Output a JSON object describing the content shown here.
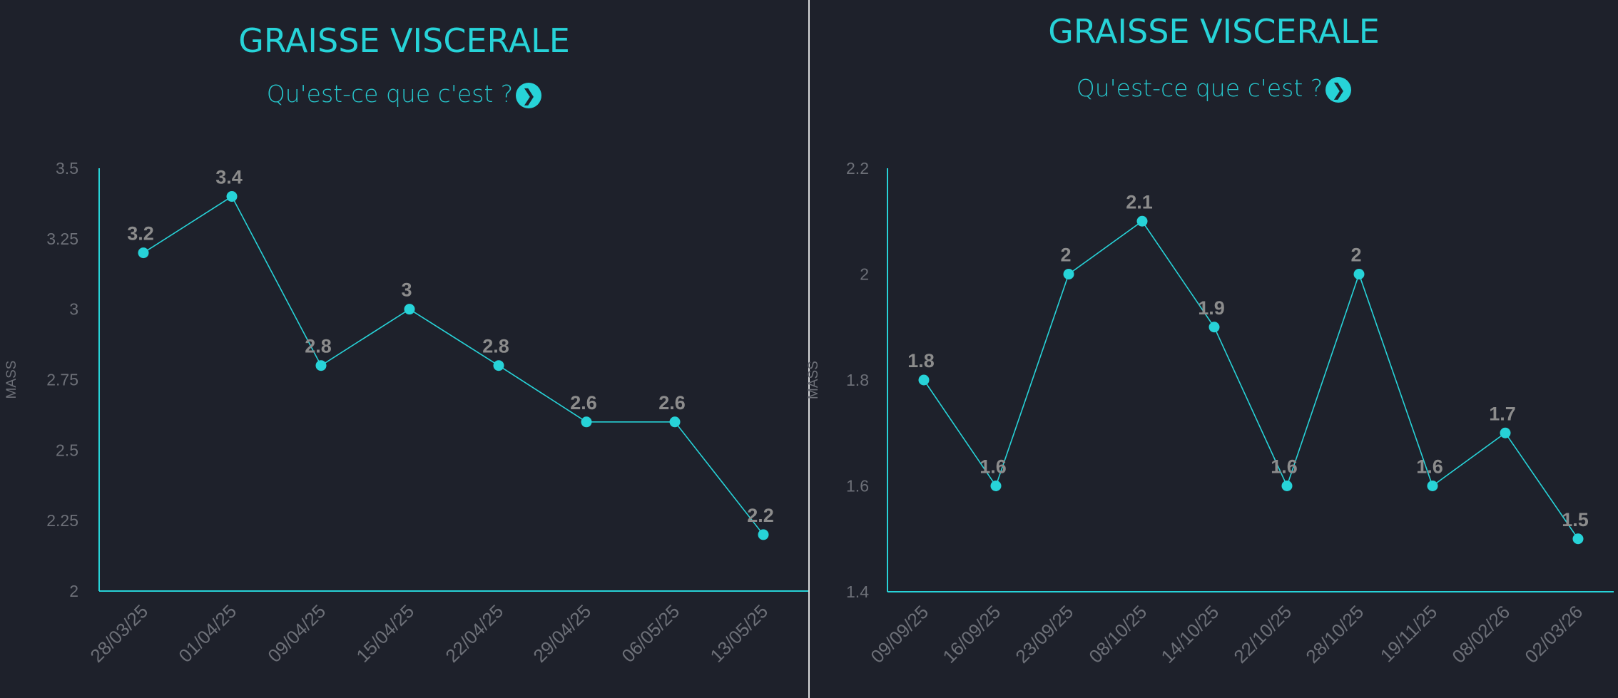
{
  "colors": {
    "background": "#1e212b",
    "accent": "#27d3d8",
    "tick": "#6d7078",
    "label": "#8c8c8c"
  },
  "panels": [
    {
      "title": "GRAISSE VISCERALE",
      "subtitle": "Qu'est-ce que c'est ?",
      "info_icon": "chevron-right-circle-icon"
    },
    {
      "title": "GRAISSE VISCERALE",
      "subtitle": "Qu'est-ce que c'est ?",
      "info_icon": "chevron-right-circle-icon"
    }
  ],
  "chart_data": [
    {
      "type": "line",
      "ylabel": "MASS",
      "ylim": [
        2,
        3.5
      ],
      "yticks": [
        "2",
        "2.25",
        "2.5",
        "2.75",
        "3",
        "3.25",
        "3.5"
      ],
      "categories": [
        "28/03/25",
        "01/04/25",
        "09/04/25",
        "15/04/25",
        "22/04/25",
        "29/04/25",
        "06/05/25",
        "13/05/25"
      ],
      "values": [
        3.2,
        3.4,
        2.8,
        3,
        2.8,
        2.6,
        2.6,
        2.2
      ],
      "data_labels": [
        "3.2",
        "3.4",
        "2.8",
        "3",
        "2.8",
        "2.6",
        "2.6",
        "2.2"
      ],
      "grid": false
    },
    {
      "type": "line",
      "ylabel": "MASS",
      "ylim": [
        1.4,
        2.2
      ],
      "yticks": [
        "1.4",
        "1.6",
        "1.8",
        "2",
        "2.2"
      ],
      "categories": [
        "09/09/25",
        "16/09/25",
        "23/09/25",
        "08/10/25",
        "14/10/25",
        "22/10/25",
        "28/10/25",
        "19/11/25",
        "08/02/26",
        "02/03/26"
      ],
      "values": [
        1.8,
        1.6,
        2,
        2.1,
        1.9,
        1.6,
        2,
        1.6,
        1.7,
        1.5
      ],
      "data_labels": [
        "1.8",
        "1.6",
        "2",
        "2.1",
        "1.9",
        "1.6",
        "2",
        "1.6",
        "1.7",
        "1.5"
      ],
      "grid": false
    }
  ]
}
